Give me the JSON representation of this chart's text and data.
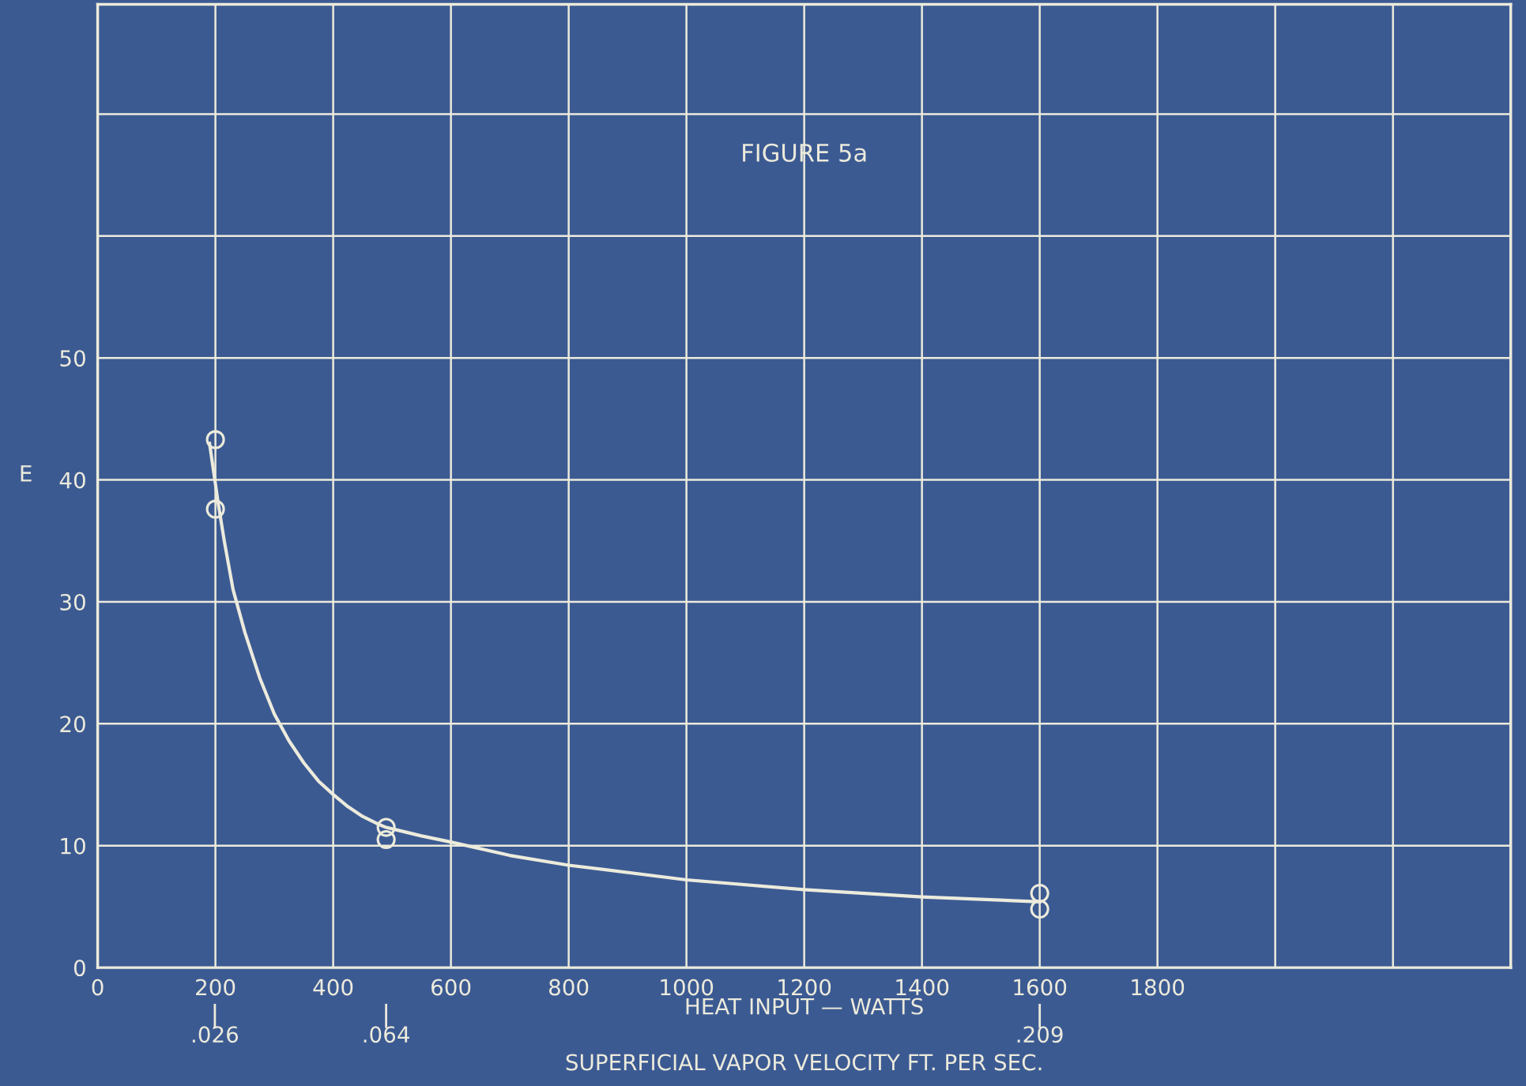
{
  "chart_data": {
    "type": "scatter",
    "title": "FIGURE 5a",
    "xlabel": "HEAT INPUT — WATTS",
    "ylabel": "E",
    "x2label": "SUPERFICIAL VAPOR VELOCITY FT. PER SEC.",
    "series": [
      {
        "color": "#ecebdc",
        "marker": "circle",
        "x": [
          200,
          200,
          490,
          490,
          1600,
          1600
        ],
        "values": [
          43.3,
          37.6,
          11.5,
          10.5,
          6.1,
          4.8
        ]
      },
      {
        "type": "line",
        "color": "#ecebdc",
        "marker": "none",
        "line_style": "solid",
        "x": [
          190,
          205,
          215,
          230,
          250,
          275,
          300,
          325,
          350,
          375,
          400,
          425,
          450,
          475,
          490,
          550,
          600,
          700,
          800,
          1000,
          1200,
          1400,
          1600
        ],
        "values": [
          43,
          38,
          35,
          31,
          27.5,
          23.8,
          20.8,
          18.6,
          16.8,
          15.3,
          14.2,
          13.2,
          12.4,
          11.8,
          11.5,
          10.8,
          10.3,
          9.2,
          8.4,
          7.2,
          6.4,
          5.8,
          5.4
        ]
      }
    ],
    "xlim": [
      0,
      2400
    ],
    "xticks": [
      0,
      200,
      400,
      600,
      800,
      1000,
      1200,
      1400,
      1600,
      1800,
      {
        "value": 2000,
        "label": null
      },
      {
        "value": 2200,
        "label": null
      },
      {
        "value": 2400,
        "label": null
      }
    ],
    "ylim": [
      0,
      79
    ],
    "yticks": [
      0,
      10,
      20,
      30,
      40,
      50,
      {
        "value": 60,
        "label": null
      },
      {
        "value": 70,
        "label": null
      }
    ],
    "x2lim": [
      0,
      0.3135
    ],
    "x2ticks": [
      {
        "value": 0.026,
        "label": ".026"
      },
      {
        "value": 0.064,
        "label": ".064"
      },
      {
        "value": 0.209,
        "label": ".209"
      }
    ],
    "grid": true,
    "legend": false
  }
}
